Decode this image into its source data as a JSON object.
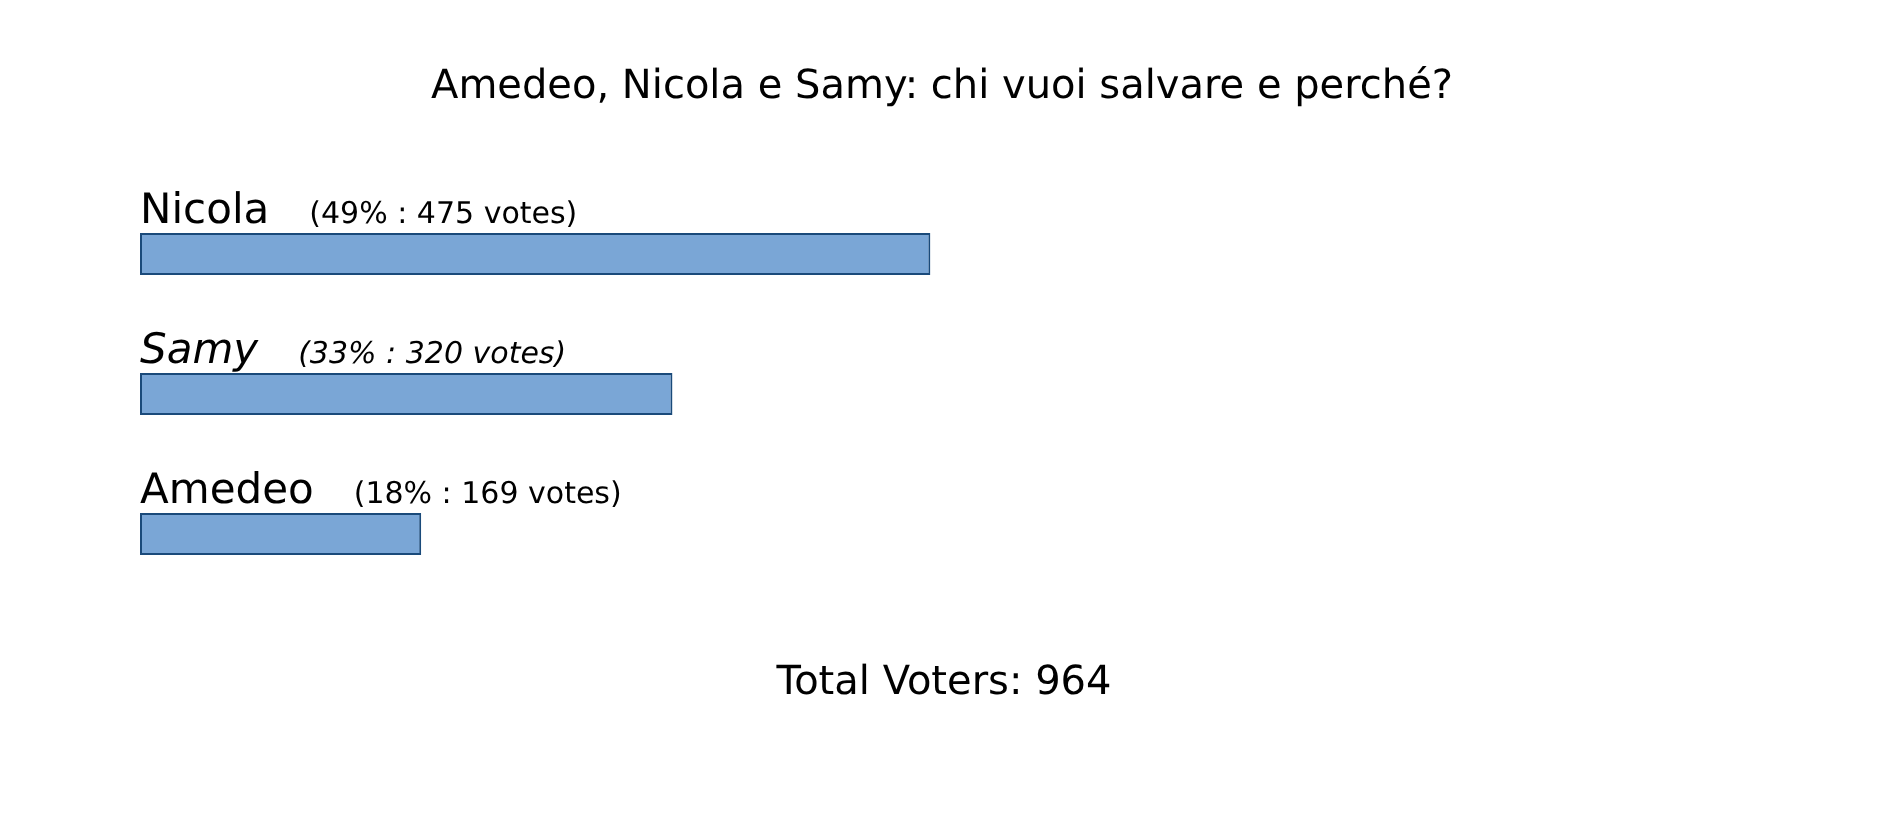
{
  "chart_data": {
    "type": "bar",
    "orientation": "horizontal",
    "title": "Amedeo, Nicola e Samy: chi vuoi salvare e perché?",
    "categories": [
      "Nicola",
      "Samy",
      "Amedeo"
    ],
    "values": [
      475,
      320,
      169
    ],
    "value_labels": [
      "(49% : 475 votes)",
      "(33% : 320 votes)",
      "(18% : 169 votes)"
    ],
    "color": "#7aa6d6",
    "annotations": [
      "Total Voters: 964"
    ]
  }
}
